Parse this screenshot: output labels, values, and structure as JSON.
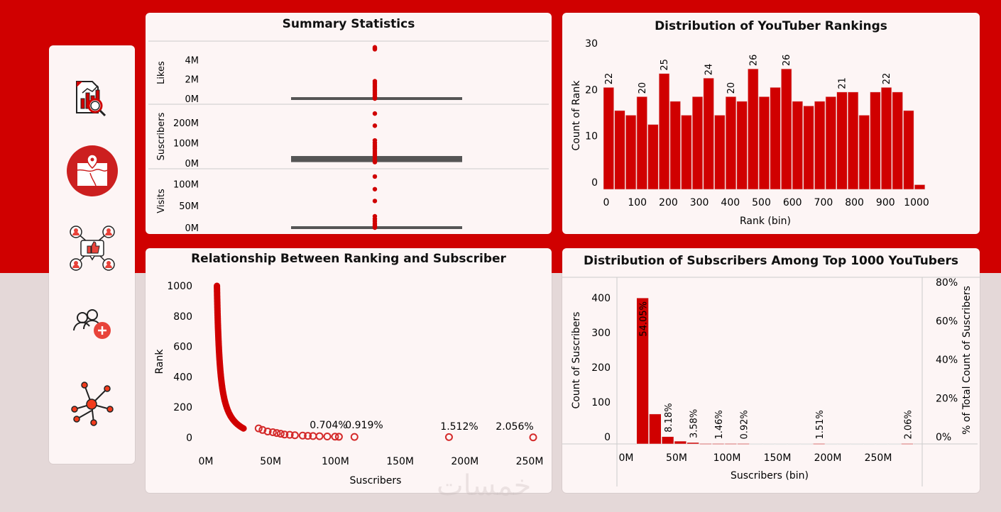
{
  "sidebar": {
    "items": [
      {
        "name": "report-analytics",
        "label": "Report Analytics"
      },
      {
        "name": "map-location",
        "label": "Map Location"
      },
      {
        "name": "social-likes",
        "label": "Social Likes"
      },
      {
        "name": "add-user",
        "label": "Add User"
      },
      {
        "name": "network",
        "label": "Network"
      }
    ]
  },
  "colors": {
    "accent": "#d00000",
    "card": "#fdf5f5",
    "background": "#e4d8d8",
    "box": "#555555"
  },
  "watermark": "خمسات",
  "chart_data": [
    {
      "type": "box",
      "title": "Summary Statistics",
      "panels": [
        {
          "label": "Likes",
          "ticks": [
            "0M",
            "2M",
            "4M"
          ],
          "ylim": [
            0,
            5500000
          ],
          "points": [
            5300000,
            5200000,
            5100000,
            1800000,
            1600000,
            1400000,
            1200000,
            1000000,
            800000,
            600000,
            400000,
            200000,
            100000,
            50000,
            0
          ]
        },
        {
          "label": "Suscribers",
          "ticks": [
            "0M",
            "100M",
            "200M"
          ],
          "ylim": [
            0,
            270000000
          ],
          "points": [
            245000000,
            185000000,
            112000000,
            100000000,
            90000000,
            80000000,
            70000000,
            60000000,
            50000000,
            40000000,
            30000000,
            20000000,
            15000000,
            10000000,
            5000000
          ],
          "box_lines": [
            12000000,
            17000000,
            22000000,
            28000000
          ]
        },
        {
          "label": "Visits",
          "ticks": [
            "0M",
            "50M",
            "100M"
          ],
          "ylim": [
            0,
            125000000
          ],
          "points": [
            117000000,
            88000000,
            61000000,
            26000000,
            20000000,
            15000000,
            10000000,
            6000000,
            3000000,
            1000000,
            0
          ]
        }
      ]
    },
    {
      "type": "bar",
      "title": "Distribution of YouTuber Rankings",
      "xlabel": "Rank (bin)",
      "ylabel": "Count of Rank",
      "ylim": [
        0,
        30
      ],
      "yticks": [
        0,
        10,
        20,
        30
      ],
      "xticks": [
        0,
        100,
        200,
        300,
        400,
        500,
        600,
        700,
        800,
        900,
        1000
      ],
      "bin_width": 35,
      "values": [
        22,
        17,
        16,
        20,
        14,
        25,
        19,
        16,
        20,
        24,
        16,
        20,
        19,
        26,
        20,
        22,
        26,
        19,
        18,
        19,
        20,
        21,
        21,
        16,
        21,
        22,
        21,
        17,
        1
      ],
      "labeled": [
        0,
        3,
        5,
        9,
        11,
        13,
        16,
        21,
        25
      ]
    },
    {
      "type": "scatter",
      "title": "Relationship Between Ranking and Subscriber",
      "xlabel": "Suscribers",
      "ylabel": "Rank",
      "xlim": [
        0,
        250
      ],
      "ylim": [
        0,
        1000
      ],
      "xticks": [
        "0M",
        "50M",
        "100M",
        "150M",
        "200M",
        "250M"
      ],
      "yticks": [
        0,
        200,
        400,
        600,
        800,
        1000
      ],
      "x_unit": "M",
      "outliers": [
        {
          "x": 38,
          "rank": 60
        },
        {
          "x": 41,
          "rank": 50
        },
        {
          "x": 45,
          "rank": 40
        },
        {
          "x": 49,
          "rank": 35
        },
        {
          "x": 52,
          "rank": 30
        },
        {
          "x": 55,
          "rank": 25
        },
        {
          "x": 58,
          "rank": 20
        },
        {
          "x": 62,
          "rank": 18
        },
        {
          "x": 66,
          "rank": 15
        },
        {
          "x": 72,
          "rank": 13
        },
        {
          "x": 76,
          "rank": 11
        },
        {
          "x": 80,
          "rank": 10
        },
        {
          "x": 85,
          "rank": 9
        },
        {
          "x": 91,
          "rank": 7
        },
        {
          "x": 97,
          "rank": 6
        },
        {
          "x": 100,
          "rank": 5
        },
        {
          "x": 112,
          "rank": 4,
          "label": "0.704%  0.919%"
        },
        {
          "x": 185,
          "rank": 3,
          "label": "1.512%"
        },
        {
          "x": 250,
          "rank": 1,
          "label": "2.056%"
        }
      ],
      "labels": [
        "0.704%",
        "0.919%",
        "1.512%",
        "2.056%"
      ]
    },
    {
      "type": "bar",
      "title": "Distribution of Subscribers Among Top 1000 YouTubers",
      "xlabel": "Suscribers (bin)",
      "ylabel": "Count of Suscribers",
      "y2label": "% of Total Count of Suscribers",
      "ylim": [
        0,
        470
      ],
      "yticks": [
        0,
        100,
        200,
        300,
        400
      ],
      "y2ticks": [
        "0%",
        "20%",
        "40%",
        "60%",
        "80%"
      ],
      "xticks": [
        "0M",
        "50M",
        "100M",
        "150M",
        "200M",
        "250M"
      ],
      "bin_width_m": 12.5,
      "bins_start_m": 12.5,
      "values": [
        420,
        86,
        21,
        8,
        4,
        1,
        1,
        1,
        1,
        0,
        0,
        0,
        0,
        0,
        1,
        0,
        0,
        0,
        0,
        0,
        0,
        1
      ],
      "labels": [
        {
          "bin": 0,
          "text": "54.05%"
        },
        {
          "bin": 2,
          "text": "8.18%"
        },
        {
          "bin": 4,
          "text": "3.58%"
        },
        {
          "bin": 6,
          "text": "1.46%"
        },
        {
          "bin": 8,
          "text": "0.92%"
        },
        {
          "bin": 14,
          "text": "1.51%"
        },
        {
          "bin": 21,
          "text": "2.06%"
        }
      ]
    }
  ]
}
